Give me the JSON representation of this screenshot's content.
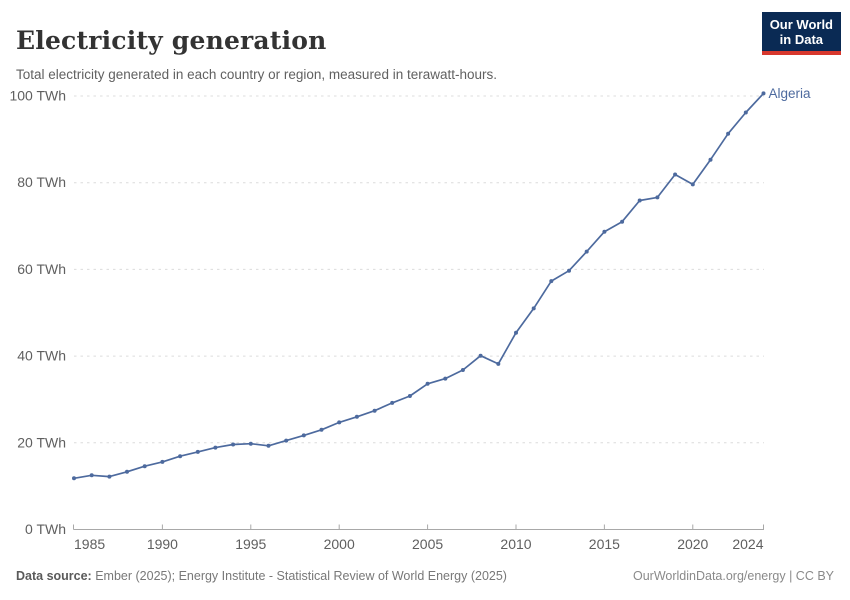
{
  "header": {
    "logo": {
      "line1": "Our World",
      "line2": "in Data"
    }
  },
  "chart_data": {
    "type": "line",
    "title": "Electricity generation",
    "subtitle": "Total electricity generated in each country or region, measured in terawatt-hours.",
    "unit": "TWh",
    "xlim": [
      1985,
      2024
    ],
    "ylim": [
      0,
      100
    ],
    "grid": "horizontal-dashed",
    "legend_position": "end-of-line-label",
    "y_ticks": [
      {
        "value": 0,
        "label": "0 TWh"
      },
      {
        "value": 20,
        "label": "20 TWh"
      },
      {
        "value": 40,
        "label": "40 TWh"
      },
      {
        "value": 60,
        "label": "60 TWh"
      },
      {
        "value": 80,
        "label": "80 TWh"
      },
      {
        "value": 100,
        "label": "100 TWh"
      }
    ],
    "x_tick_marks": [
      1990,
      1995,
      2000,
      2005,
      2010,
      2015,
      2020,
      2024
    ],
    "x_labels": [
      1985,
      1990,
      1995,
      2000,
      2005,
      2010,
      2015,
      2020,
      2024
    ],
    "series": [
      {
        "name": "Algeria",
        "color": "#4d6a9e",
        "x": [
          1985,
          1986,
          1987,
          1988,
          1989,
          1990,
          1991,
          1992,
          1993,
          1994,
          1995,
          1996,
          1997,
          1998,
          1999,
          2000,
          2001,
          2002,
          2003,
          2004,
          2005,
          2006,
          2007,
          2008,
          2009,
          2010,
          2011,
          2012,
          2013,
          2014,
          2015,
          2016,
          2017,
          2018,
          2019,
          2020,
          2021,
          2022,
          2023,
          2024
        ],
        "values": [
          11.8,
          12.5,
          12.2,
          13.3,
          14.6,
          15.6,
          16.9,
          17.9,
          18.9,
          19.6,
          19.8,
          19.3,
          20.5,
          21.7,
          23.0,
          24.7,
          26.0,
          27.4,
          29.2,
          30.8,
          33.6,
          34.8,
          36.8,
          40.1,
          38.2,
          45.4,
          51.0,
          57.3,
          59.7,
          64.1,
          68.7,
          71.0,
          75.9,
          76.6,
          81.9,
          79.6,
          85.3,
          91.3,
          96.2,
          100.6
        ]
      }
    ]
  },
  "footer": {
    "source_label": "Data source:",
    "source_text": " Ember (2025); Energy Institute - Statistical Review of World Energy (2025)",
    "credit": "OurWorldinData.org/energy | CC BY"
  },
  "colors": {
    "line": "#4d6a9e",
    "logo_bg": "#0a2a54",
    "logo_stripe": "#d7372d",
    "grid_dashed": "#dcdcdc",
    "axis": "#a8a8a8",
    "tick_text": "#5f5f5f",
    "title_text": "#333333",
    "subtitle_text": "#616161"
  }
}
